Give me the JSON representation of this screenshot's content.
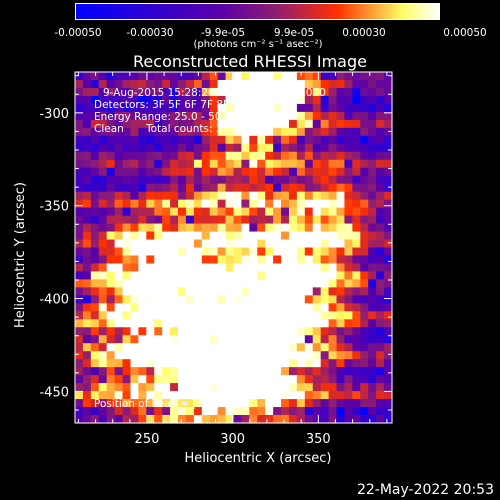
{
  "chart_data": {
    "type": "heatmap",
    "title": "Reconstructed RHESSI Image",
    "xlabel": "Heliocentric X (arcsec)",
    "ylabel": "Heliocentric Y (arcsec)",
    "xlim": [
      208,
      393
    ],
    "ylim": [
      -467,
      -278
    ],
    "x_ticks": [
      250,
      300,
      350
    ],
    "y_ticks": [
      -300,
      -350,
      -400,
      -450
    ],
    "colorbar": {
      "ticks": [
        "-0.00050",
        "-0.00030",
        "-9.9e-05",
        "9.9e-05",
        "0.00030",
        "0.00050"
      ],
      "tick_values": [
        -0.0005,
        -0.0003,
        -9.9e-05,
        9.9e-05,
        0.0003,
        0.0005
      ],
      "range": [
        -0.0005,
        0.0005
      ],
      "units": "(photons cm⁻² s⁻¹ asec⁻²)"
    },
    "annotations": {
      "time_range": "9-Aug-2015 15:28:20.000 to 15:30:24.000",
      "detectors": "Detectors: 3F 5F 6F 7F 8F 9F 10F",
      "energy": "Energy Range: 25.0 - 50.0 keV",
      "method": "Clean",
      "total_counts": "Total counts: 3.13E+03",
      "peak": "Position of Peak = [314,-283]"
    },
    "colors": {
      "low": "#0000ff",
      "mid_low": "#5a00a8",
      "mid": "#8f1e72",
      "mid_high": "#ff3000",
      "high": "#ffff66",
      "max": "#ffffff"
    }
  },
  "footer": {
    "timestamp": "22-May-2022 20:53"
  }
}
